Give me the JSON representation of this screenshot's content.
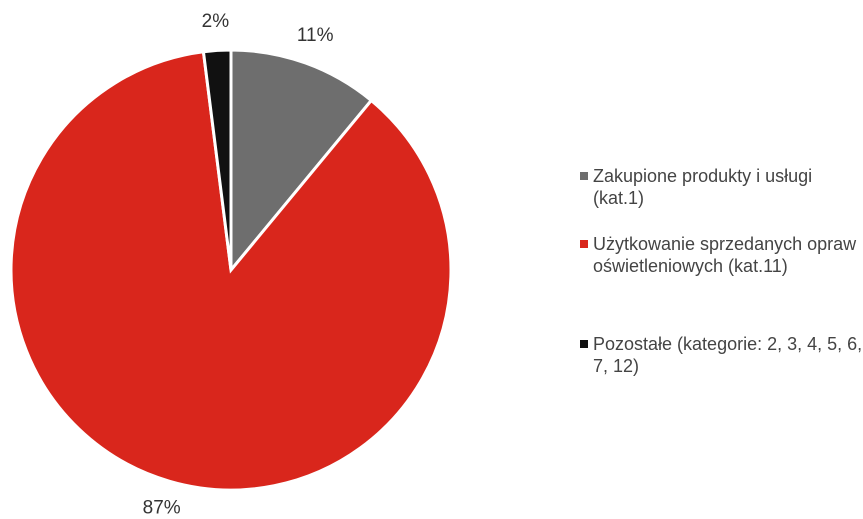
{
  "chart_data": {
    "type": "pie",
    "categories": [
      "Zakupione produkty i usługi (kat.1)",
      "Użytkowanie sprzedanych opraw oświetleniowych (kat.11)",
      "Pozostałe (kategorie: 2, 3, 4, 5, 6, 7, 12)"
    ],
    "values": [
      11,
      87,
      2
    ],
    "value_labels": [
      "11%",
      "87%",
      "2%"
    ],
    "colors": [
      "#6e6e6e",
      "#d9261c",
      "#111111"
    ],
    "legend": "right"
  }
}
